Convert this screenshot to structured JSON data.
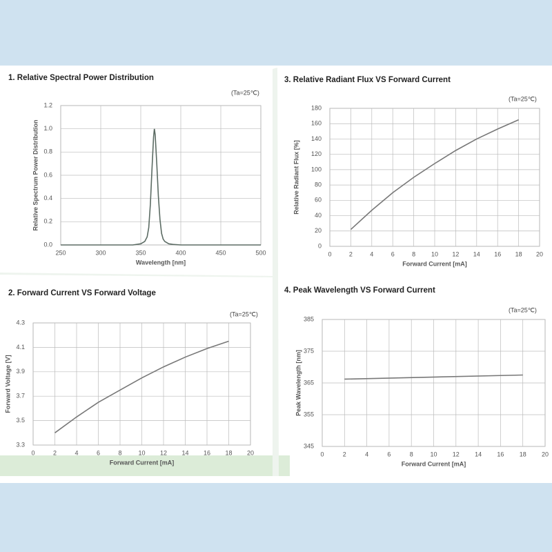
{
  "chart_data": [
    {
      "type": "line",
      "title": "1. Relative Spectral Power Distribution",
      "annotation": "(Ta=25℃)",
      "x_label": "Wavelength [nm]",
      "y_label": "Relative Spectrum Power Distribution",
      "color": "#5b6b63",
      "x": [
        250,
        340,
        350,
        355,
        358,
        360,
        362,
        364,
        366,
        367,
        368,
        370,
        372,
        374,
        376,
        378,
        380,
        385,
        390,
        400,
        500
      ],
      "values": [
        0,
        0,
        0.01,
        0.03,
        0.07,
        0.15,
        0.35,
        0.65,
        0.93,
        1.0,
        0.95,
        0.7,
        0.42,
        0.22,
        0.1,
        0.05,
        0.03,
        0.01,
        0.005,
        0,
        0
      ],
      "xlim": [
        250,
        500
      ],
      "ylim": [
        0,
        1.2
      ],
      "xticks": [
        250,
        300,
        350,
        400,
        450,
        500
      ],
      "yticks": [
        {
          "value": 0,
          "label": "0.0"
        },
        0.2,
        0.4,
        0.6,
        0.8,
        {
          "value": 1,
          "label": "1.0"
        },
        1.2
      ],
      "grid": true
    },
    {
      "type": "line",
      "title": "3. Relative Radiant Flux  VS  Forward Current",
      "annotation": "(Ta=25℃)",
      "x_label": "Forward Current [mA]",
      "y_label": "Relative Radiant Flux [%]",
      "color": "#777777",
      "x": [
        2,
        4,
        6,
        8,
        10,
        12,
        14,
        16,
        18
      ],
      "values": [
        22,
        47,
        70,
        90,
        108,
        125,
        140,
        153,
        165
      ],
      "xlim": [
        0,
        20
      ],
      "ylim": [
        0,
        180
      ],
      "xticks": [
        0,
        2,
        4,
        6,
        8,
        10,
        12,
        14,
        16,
        18,
        20
      ],
      "yticks": [
        0,
        20,
        40,
        60,
        80,
        100,
        120,
        140,
        160,
        180
      ],
      "grid": true
    },
    {
      "type": "line",
      "title": "2. Forward Current VS Forward Voltage",
      "annotation": "(Ta=25℃)",
      "x_label": "Forward Current [mA]",
      "y_label": "Forward Voltage [V]",
      "color": "#777777",
      "x": [
        2,
        4,
        6,
        8,
        10,
        12,
        14,
        16,
        18
      ],
      "values": [
        3.4,
        3.53,
        3.65,
        3.75,
        3.85,
        3.94,
        4.02,
        4.09,
        4.15
      ],
      "xlim": [
        0,
        20
      ],
      "ylim": [
        3.3,
        4.3
      ],
      "xticks": [
        0,
        2,
        4,
        6,
        8,
        10,
        12,
        14,
        16,
        18,
        20
      ],
      "yticks": [
        3.3,
        3.5,
        3.7,
        3.9,
        4.1,
        4.3
      ],
      "grid": true
    },
    {
      "type": "line",
      "title": "4. Peak Wavelength  VS  Forward Current",
      "annotation": "(Ta=25℃)",
      "x_label": "Forward Current [mA]",
      "y_label": "Peak Wavelength [nm]",
      "color": "#777777",
      "x": [
        2,
        18
      ],
      "values": [
        366.2,
        367.5
      ],
      "xlim": [
        0,
        20
      ],
      "ylim": [
        345,
        385
      ],
      "xticks": [
        0,
        2,
        4,
        6,
        8,
        10,
        12,
        14,
        16,
        18,
        20
      ],
      "yticks": [
        345,
        355,
        365,
        375,
        385
      ],
      "grid": true
    }
  ]
}
